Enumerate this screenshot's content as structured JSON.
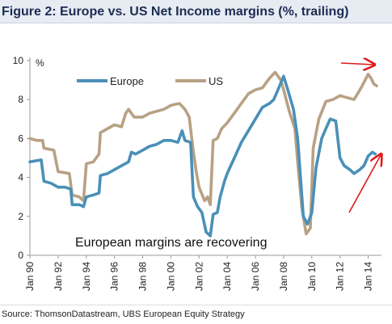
{
  "header": {
    "title": "Figure 2: Europe vs. US Net Income margins (%, trailing)"
  },
  "footer": {
    "source": "Source:  ThomsonDatastream, UBS European Equity Strategy"
  },
  "chart_data": {
    "type": "line",
    "title": "Figure 2: Europe vs. US Net Income margins (%, trailing)",
    "xlabel": "",
    "ylabel": "%",
    "xlim": [
      1990.0,
      2014.6
    ],
    "ylim": [
      0,
      10
    ],
    "y_ticks": [
      0,
      2,
      4,
      6,
      8,
      10
    ],
    "x_ticks": [
      {
        "label": "Jan 90",
        "x": 1990
      },
      {
        "label": "Jan 92",
        "x": 1992
      },
      {
        "label": "Jan 94",
        "x": 1994
      },
      {
        "label": "Jan 96",
        "x": 1996
      },
      {
        "label": "Jan 98",
        "x": 1998
      },
      {
        "label": "Jan 00",
        "x": 2000
      },
      {
        "label": "Jan 02",
        "x": 2002
      },
      {
        "label": "Jan 04",
        "x": 2004
      },
      {
        "label": "Jan 06",
        "x": 2006
      },
      {
        "label": "Jan 08",
        "x": 2008
      },
      {
        "label": "Jan 10",
        "x": 2010
      },
      {
        "label": "Jan 12",
        "x": 2012
      },
      {
        "label": "Jan 14",
        "x": 2014
      }
    ],
    "grid": false,
    "legend_position": "top-left",
    "annotation": "European margins are recovering",
    "series": [
      {
        "name": "Europe",
        "color": "#4a90b8",
        "points": [
          [
            1990.0,
            4.8
          ],
          [
            1990.8,
            4.9
          ],
          [
            1991.0,
            3.8
          ],
          [
            1991.5,
            3.7
          ],
          [
            1992.0,
            3.5
          ],
          [
            1992.5,
            3.5
          ],
          [
            1992.9,
            3.4
          ],
          [
            1993.0,
            2.6
          ],
          [
            1993.5,
            2.6
          ],
          [
            1993.8,
            2.5
          ],
          [
            1994.0,
            3.0
          ],
          [
            1994.5,
            3.1
          ],
          [
            1994.9,
            3.2
          ],
          [
            1995.0,
            4.1
          ],
          [
            1995.5,
            4.2
          ],
          [
            1996.0,
            4.4
          ],
          [
            1996.5,
            4.6
          ],
          [
            1997.0,
            4.8
          ],
          [
            1997.2,
            5.3
          ],
          [
            1997.5,
            5.2
          ],
          [
            1998.0,
            5.4
          ],
          [
            1998.5,
            5.6
          ],
          [
            1999.0,
            5.7
          ],
          [
            1999.5,
            5.9
          ],
          [
            2000.0,
            5.9
          ],
          [
            2000.5,
            5.8
          ],
          [
            2000.8,
            6.4
          ],
          [
            2001.0,
            5.9
          ],
          [
            2001.4,
            5.8
          ],
          [
            2001.6,
            3.0
          ],
          [
            2001.9,
            2.5
          ],
          [
            2002.2,
            2.2
          ],
          [
            2002.5,
            1.2
          ],
          [
            2002.8,
            1.0
          ],
          [
            2003.0,
            2.1
          ],
          [
            2003.3,
            2.2
          ],
          [
            2003.5,
            3.0
          ],
          [
            2003.8,
            3.8
          ],
          [
            2004.0,
            4.2
          ],
          [
            2004.5,
            5.0
          ],
          [
            2005.0,
            5.8
          ],
          [
            2005.5,
            6.4
          ],
          [
            2006.0,
            7.0
          ],
          [
            2006.5,
            7.6
          ],
          [
            2007.0,
            7.8
          ],
          [
            2007.3,
            8.0
          ],
          [
            2007.6,
            8.5
          ],
          [
            2008.0,
            9.2
          ],
          [
            2008.3,
            8.5
          ],
          [
            2008.7,
            7.5
          ],
          [
            2009.0,
            6.0
          ],
          [
            2009.2,
            4.0
          ],
          [
            2009.4,
            2.0
          ],
          [
            2009.7,
            1.6
          ],
          [
            2010.0,
            2.2
          ],
          [
            2010.3,
            4.5
          ],
          [
            2010.7,
            6.0
          ],
          [
            2011.0,
            6.5
          ],
          [
            2011.3,
            7.0
          ],
          [
            2011.7,
            6.9
          ],
          [
            2012.0,
            5.0
          ],
          [
            2012.3,
            4.6
          ],
          [
            2012.7,
            4.4
          ],
          [
            2013.0,
            4.2
          ],
          [
            2013.4,
            4.4
          ],
          [
            2013.7,
            4.6
          ],
          [
            2014.0,
            5.1
          ],
          [
            2014.3,
            5.3
          ],
          [
            2014.5,
            5.2
          ]
        ]
      },
      {
        "name": "US",
        "color": "#b8a184",
        "points": [
          [
            1990.0,
            6.0
          ],
          [
            1990.5,
            5.9
          ],
          [
            1990.9,
            5.9
          ],
          [
            1991.0,
            5.5
          ],
          [
            1991.7,
            5.4
          ],
          [
            1992.0,
            4.3
          ],
          [
            1992.8,
            4.2
          ],
          [
            1993.0,
            3.1
          ],
          [
            1993.5,
            3.0
          ],
          [
            1993.8,
            2.8
          ],
          [
            1994.0,
            4.7
          ],
          [
            1994.5,
            4.8
          ],
          [
            1994.9,
            5.2
          ],
          [
            1995.0,
            6.3
          ],
          [
            1995.5,
            6.5
          ],
          [
            1996.0,
            6.7
          ],
          [
            1996.5,
            6.6
          ],
          [
            1996.8,
            7.3
          ],
          [
            1997.0,
            7.5
          ],
          [
            1997.4,
            7.1
          ],
          [
            1998.0,
            7.1
          ],
          [
            1998.5,
            7.3
          ],
          [
            1999.0,
            7.4
          ],
          [
            1999.5,
            7.5
          ],
          [
            2000.0,
            7.7
          ],
          [
            2000.6,
            7.8
          ],
          [
            2001.0,
            7.5
          ],
          [
            2001.3,
            7.1
          ],
          [
            2001.6,
            5.3
          ],
          [
            2001.8,
            4.3
          ],
          [
            2002.0,
            3.5
          ],
          [
            2002.4,
            2.8
          ],
          [
            2002.6,
            3.0
          ],
          [
            2002.8,
            2.6
          ],
          [
            2003.0,
            5.9
          ],
          [
            2003.3,
            6.0
          ],
          [
            2003.6,
            6.5
          ],
          [
            2004.0,
            6.8
          ],
          [
            2004.5,
            7.3
          ],
          [
            2005.0,
            7.8
          ],
          [
            2005.5,
            8.3
          ],
          [
            2006.0,
            8.5
          ],
          [
            2006.5,
            8.6
          ],
          [
            2007.0,
            9.1
          ],
          [
            2007.4,
            9.4
          ],
          [
            2007.8,
            9.0
          ],
          [
            2008.0,
            8.5
          ],
          [
            2008.4,
            7.4
          ],
          [
            2008.8,
            6.5
          ],
          [
            2009.0,
            4.8
          ],
          [
            2009.3,
            2.4
          ],
          [
            2009.6,
            1.1
          ],
          [
            2009.9,
            1.4
          ],
          [
            2010.1,
            5.5
          ],
          [
            2010.5,
            7.0
          ],
          [
            2011.0,
            7.9
          ],
          [
            2011.5,
            8.0
          ],
          [
            2012.0,
            8.2
          ],
          [
            2012.5,
            8.1
          ],
          [
            2013.0,
            8.0
          ],
          [
            2013.5,
            8.6
          ],
          [
            2014.0,
            9.3
          ],
          [
            2014.2,
            9.1
          ],
          [
            2014.4,
            8.8
          ],
          [
            2014.6,
            8.7
          ]
        ]
      }
    ]
  }
}
